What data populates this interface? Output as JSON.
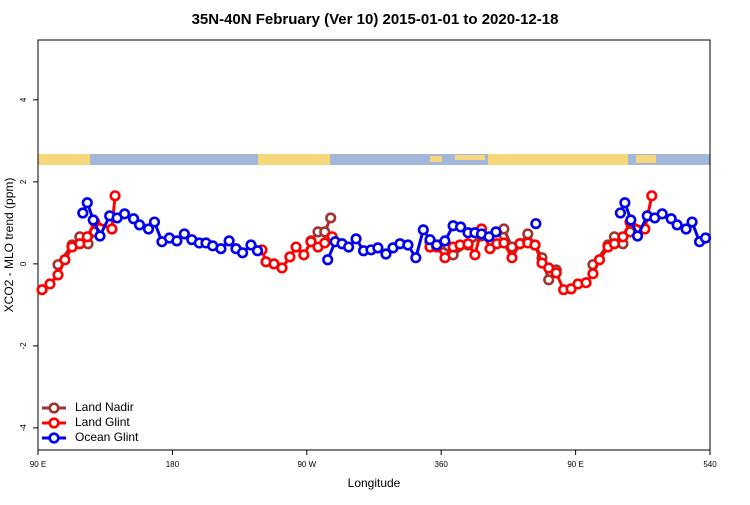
{
  "chart_data": {
    "type": "line",
    "title": "35N-40N February (Ver 10)   2015-01-01 to 2020-12-18",
    "x_label": "Longitude",
    "y_label": "XCO2 - MLO trend (ppm)",
    "xlim": [
      90,
      540
    ],
    "ylim": [
      -4.54,
      5.46
    ],
    "xticks": [
      {
        "value": 90,
        "label": "90 E"
      },
      180,
      {
        "value": 270,
        "label": "90 W"
      },
      360,
      {
        "value": 450,
        "label": "90 E"
      },
      540
    ],
    "yticks": [
      4,
      2,
      0,
      -2,
      -4
    ],
    "legend": "bottom-left",
    "series": [
      {
        "name": "Land Nadir",
        "color": "#a0352f",
        "x": [
          103.4,
          112.8,
          118,
          123.5,
          128,
          200,
          272.8,
          277.5,
          282,
          286,
          300,
          352.5,
          359,
          368,
          378,
          387,
          397.3,
          402,
          407.4,
          412.7,
          418,
          422.8,
          427.5,
          432,
          437,
          450,
          461.6,
          471.7,
          476,
          481.7,
          486.4
        ],
        "values": [
          -0.02,
          0.46,
          0.66,
          0.49,
          0.78,
          null,
          0.56,
          0.78,
          0.78,
          1.12,
          null,
          0.54,
          0.46,
          0.22,
          0.46,
          0.68,
          0.59,
          0.85,
          0.41,
          0.49,
          0.73,
          0.46,
          0.15,
          -0.39,
          -0.15,
          null,
          -0.02,
          0.46,
          0.66,
          0.49,
          0.78
        ]
      },
      {
        "name": "Land Glint",
        "color": "#ff0000",
        "x": [
          92.7,
          98,
          103.4,
          108,
          112.8,
          118,
          123,
          128,
          139.5,
          141.6,
          200,
          240,
          242.7,
          248,
          253.4,
          258.7,
          262.8,
          268,
          272.8,
          277.5,
          282,
          287,
          320,
          352.5,
          357,
          362.5,
          368,
          372.6,
          378,
          382.6,
          387,
          392.7,
          397.3,
          402,
          407.4,
          412.7,
          418,
          422.8,
          427.5,
          432,
          437,
          442,
          447,
          451.6,
          457,
          461.6,
          466,
          471.7,
          476,
          481.7,
          486.4,
          496.4,
          501
        ],
        "values": [
          -0.63,
          -0.49,
          -0.27,
          0.1,
          0.41,
          0.49,
          0.66,
          1.02,
          0.85,
          1.66,
          null,
          0.34,
          0.05,
          0,
          -0.1,
          0.17,
          0.41,
          0.22,
          0.54,
          0.41,
          0.51,
          0.66,
          null,
          0.41,
          0.41,
          0.15,
          0.41,
          0.46,
          0.49,
          0.22,
          0.85,
          0.37,
          0.49,
          0.51,
          0.15,
          0.49,
          0.51,
          0.46,
          0.02,
          -0.1,
          -0.22,
          -0.63,
          -0.61,
          -0.49,
          -0.46,
          -0.24,
          0.1,
          0.41,
          0.49,
          0.66,
          1.02,
          0.85,
          1.66
        ]
      },
      {
        "name": "Ocean Glint",
        "color": "#0000ee",
        "x": [
          120,
          123,
          127,
          131.5,
          138,
          143,
          148,
          154,
          158,
          164,
          168,
          173,
          178,
          183,
          188,
          193,
          198,
          202.5,
          207,
          212.5,
          218,
          222.6,
          227,
          232.6,
          237,
          260,
          284,
          289,
          293.6,
          298,
          303,
          308,
          313,
          317.6,
          323,
          327.7,
          332.4,
          337.7,
          343,
          348,
          352.5,
          357,
          362.5,
          368,
          373,
          378,
          382.6,
          387,
          392,
          396.7,
          410,
          423.4,
          450,
          480,
          483,
          487,
          491.5,
          498,
          503,
          508,
          514,
          518,
          524,
          528,
          533,
          537
        ],
        "values": [
          1.24,
          1.49,
          1.07,
          0.68,
          1.17,
          1.12,
          1.22,
          1.1,
          0.95,
          0.85,
          1.02,
          0.54,
          0.63,
          0.56,
          0.73,
          0.59,
          0.51,
          0.51,
          0.44,
          0.37,
          0.56,
          0.37,
          0.27,
          0.46,
          0.32,
          null,
          0.1,
          0.54,
          0.49,
          0.41,
          0.61,
          0.32,
          0.34,
          0.39,
          0.24,
          0.39,
          0.49,
          0.46,
          0.15,
          0.83,
          0.59,
          0.46,
          0.56,
          0.93,
          0.9,
          0.76,
          0.76,
          0.73,
          0.66,
          0.78,
          null,
          0.98,
          null,
          1.24,
          1.49,
          1.07,
          0.68,
          1.17,
          1.12,
          1.22,
          1.1,
          0.95,
          0.85,
          1.02,
          0.54,
          0.63
        ]
      }
    ]
  }
}
